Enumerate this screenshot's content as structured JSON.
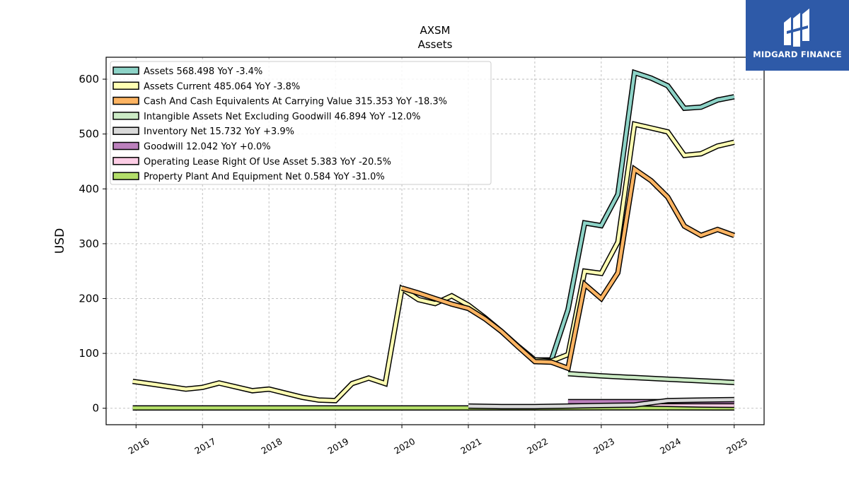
{
  "brand": {
    "name": "MIDGARD FINANCE",
    "bg_color": "#2e5aa8"
  },
  "chart_data": {
    "type": "line",
    "title": "AXSM",
    "subtitle": "Assets",
    "ylabel": "USD",
    "xlabel": "",
    "xlim": [
      2015.55,
      2025.45
    ],
    "ylim": [
      -30,
      640
    ],
    "x_ticks": [
      2016,
      2017,
      2018,
      2019,
      2020,
      2021,
      2022,
      2023,
      2024,
      2025
    ],
    "y_ticks": [
      0,
      100,
      200,
      300,
      400,
      500,
      600
    ],
    "grid": true,
    "legend_position": "top-left",
    "series": [
      {
        "name": "Assets  568.498 YoY -3.4%",
        "color": "#8dd3c7",
        "points": [
          [
            2022.0,
            88
          ],
          [
            2022.25,
            88
          ],
          [
            2022.5,
            180
          ],
          [
            2022.75,
            338
          ],
          [
            2023.0,
            333
          ],
          [
            2023.25,
            390
          ],
          [
            2023.5,
            612
          ],
          [
            2023.75,
            602
          ],
          [
            2024.0,
            588
          ],
          [
            2024.25,
            547
          ],
          [
            2024.5,
            549
          ],
          [
            2024.75,
            562
          ],
          [
            2025.0,
            568
          ]
        ]
      },
      {
        "name": "Assets Current  485.064 YoY -3.8%",
        "color": "#ffffb3",
        "points": [
          [
            2015.95,
            49
          ],
          [
            2016.25,
            44
          ],
          [
            2016.75,
            35
          ],
          [
            2017.0,
            38
          ],
          [
            2017.25,
            46
          ],
          [
            2017.75,
            32
          ],
          [
            2018.0,
            35
          ],
          [
            2018.5,
            20
          ],
          [
            2018.75,
            15
          ],
          [
            2019.0,
            14
          ],
          [
            2019.25,
            45
          ],
          [
            2019.5,
            55
          ],
          [
            2019.75,
            45
          ],
          [
            2020.0,
            218
          ],
          [
            2020.25,
            198
          ],
          [
            2020.5,
            191
          ],
          [
            2020.75,
            205
          ],
          [
            2021.0,
            188
          ],
          [
            2021.25,
            165
          ],
          [
            2021.5,
            140
          ],
          [
            2021.75,
            113
          ],
          [
            2022.0,
            88
          ],
          [
            2022.25,
            86
          ],
          [
            2022.5,
            98
          ],
          [
            2022.75,
            250
          ],
          [
            2023.0,
            246
          ],
          [
            2023.25,
            303
          ],
          [
            2023.5,
            518
          ],
          [
            2023.75,
            511
          ],
          [
            2024.0,
            504
          ],
          [
            2024.25,
            461
          ],
          [
            2024.5,
            464
          ],
          [
            2024.75,
            478
          ],
          [
            2025.0,
            485
          ]
        ]
      },
      {
        "name": "Cash And Cash Equivalents At Carrying Value  315.353 YoY -18.3%",
        "color": "#fdb462",
        "points": [
          [
            2020.0,
            219
          ],
          [
            2020.25,
            210
          ],
          [
            2020.5,
            200
          ],
          [
            2020.75,
            190
          ],
          [
            2021.0,
            182
          ],
          [
            2021.25,
            163
          ],
          [
            2021.5,
            140
          ],
          [
            2021.75,
            112
          ],
          [
            2022.0,
            85
          ],
          [
            2022.25,
            84
          ],
          [
            2022.5,
            73
          ],
          [
            2022.75,
            226
          ],
          [
            2023.0,
            200
          ],
          [
            2023.25,
            247
          ],
          [
            2023.5,
            436
          ],
          [
            2023.75,
            415
          ],
          [
            2024.0,
            385
          ],
          [
            2024.25,
            332
          ],
          [
            2024.5,
            315
          ],
          [
            2024.75,
            326
          ],
          [
            2025.0,
            315
          ]
        ]
      },
      {
        "name": "Intangible Assets Net Excluding Goodwill  46.894 YoY -12.0%",
        "color": "#ccebc5",
        "points": [
          [
            2022.5,
            63
          ],
          [
            2023.0,
            59
          ],
          [
            2023.5,
            56
          ],
          [
            2024.0,
            53
          ],
          [
            2024.5,
            50
          ],
          [
            2025.0,
            47
          ]
        ]
      },
      {
        "name": "Inventory Net  15.732 YoY +3.9%",
        "color": "#d9d9d9",
        "points": [
          [
            2021.0,
            4
          ],
          [
            2021.5,
            3
          ],
          [
            2022.0,
            3
          ],
          [
            2022.5,
            4
          ],
          [
            2023.0,
            5
          ],
          [
            2023.5,
            6
          ],
          [
            2024.0,
            14
          ],
          [
            2024.5,
            15
          ],
          [
            2025.0,
            15.7
          ]
        ]
      },
      {
        "name": "Goodwill  12.042 YoY +0.0%",
        "color": "#bc80bd",
        "points": [
          [
            2022.5,
            12
          ],
          [
            2022.75,
            12
          ],
          [
            2023.0,
            12
          ],
          [
            2023.5,
            12
          ],
          [
            2024.0,
            12
          ],
          [
            2024.5,
            12
          ],
          [
            2025.0,
            12
          ]
        ]
      },
      {
        "name": "Operating Lease Right Of Use Asset  5.383 YoY -20.5%",
        "color": "#fccde5",
        "points": [
          [
            2023.0,
            9
          ],
          [
            2023.5,
            8
          ],
          [
            2024.0,
            7
          ],
          [
            2024.5,
            6
          ],
          [
            2025.0,
            5.4
          ]
        ]
      },
      {
        "name": "Property Plant And Equipment Net  0.584 YoY -31.0%",
        "color": "#b3de69",
        "points": [
          [
            2015.95,
            0.5
          ],
          [
            2017.0,
            0.5
          ],
          [
            2018.0,
            0.5
          ],
          [
            2019.0,
            0.5
          ],
          [
            2020.0,
            0.5
          ],
          [
            2021.0,
            0.5
          ],
          [
            2022.0,
            0.6
          ],
          [
            2023.0,
            0.8
          ],
          [
            2024.0,
            0.8
          ],
          [
            2025.0,
            0.6
          ]
        ]
      }
    ]
  }
}
